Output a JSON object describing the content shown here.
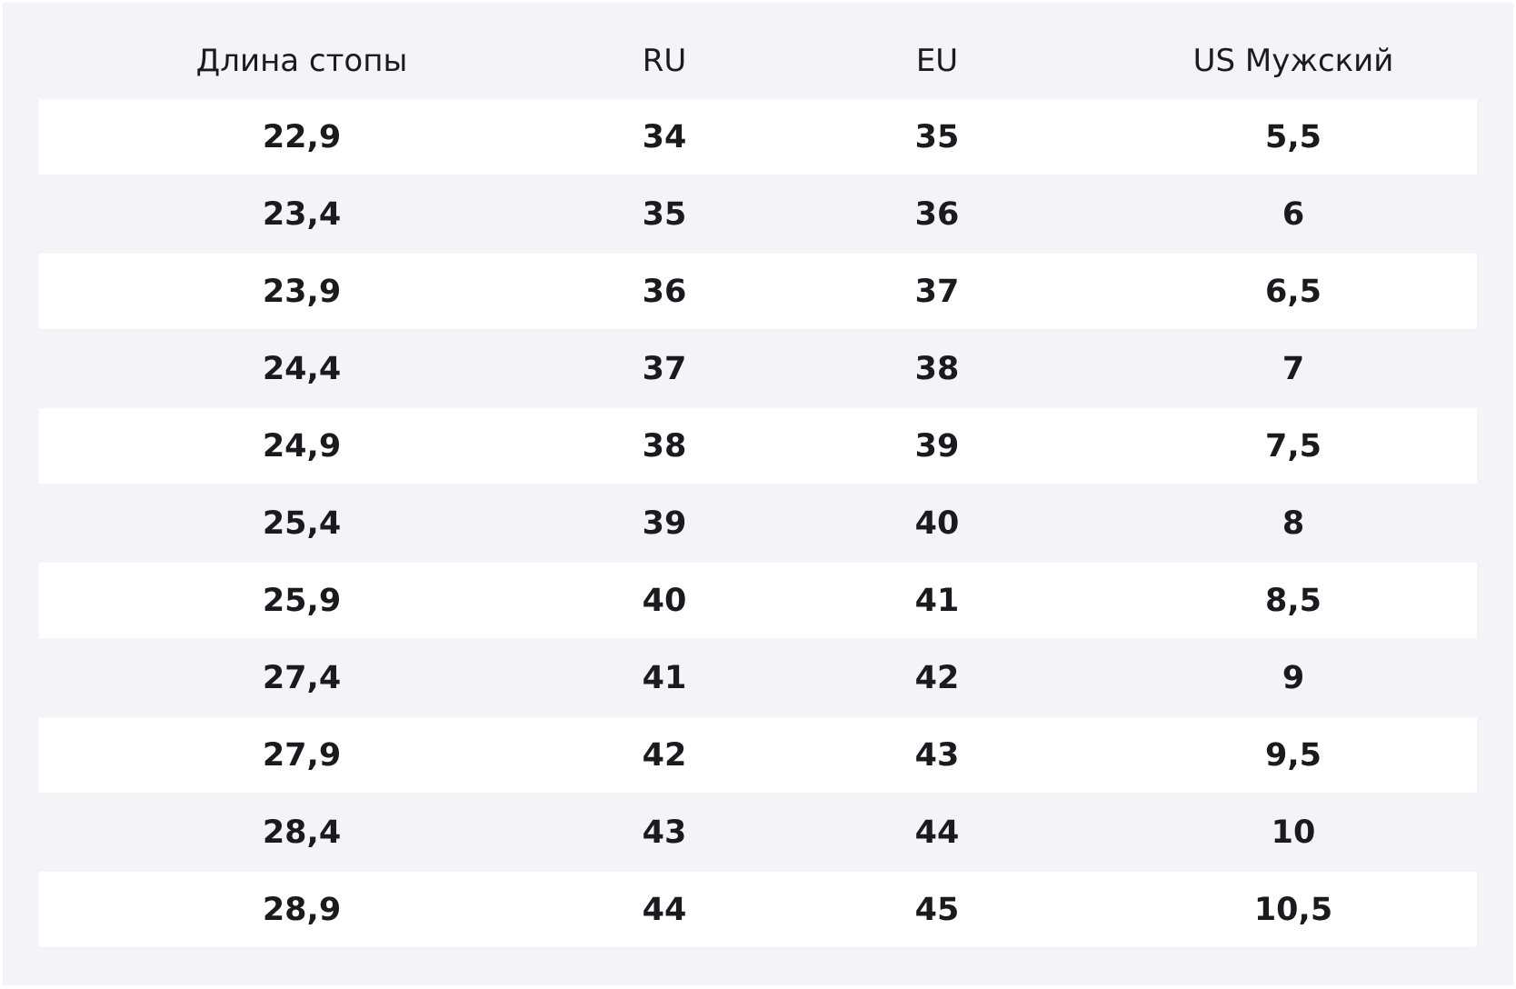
{
  "table": {
    "header": [
      "Длина стопы",
      "RU",
      "EU",
      "US Мужский"
    ],
    "rows": [
      [
        "22,9",
        "34",
        "35",
        "5,5"
      ],
      [
        "23,4",
        "35",
        "36",
        "6"
      ],
      [
        "23,9",
        "36",
        "37",
        "6,5"
      ],
      [
        "24,4",
        "37",
        "38",
        "7"
      ],
      [
        "24,9",
        "38",
        "39",
        "7,5"
      ],
      [
        "25,4",
        "39",
        "40",
        "8"
      ],
      [
        "25,9",
        "40",
        "41",
        "8,5"
      ],
      [
        "27,4",
        "41",
        "42",
        "9"
      ],
      [
        "27,9",
        "42",
        "43",
        "9,5"
      ],
      [
        "28,4",
        "43",
        "44",
        "10"
      ],
      [
        "28,9",
        "44",
        "45",
        "10,5"
      ]
    ]
  }
}
